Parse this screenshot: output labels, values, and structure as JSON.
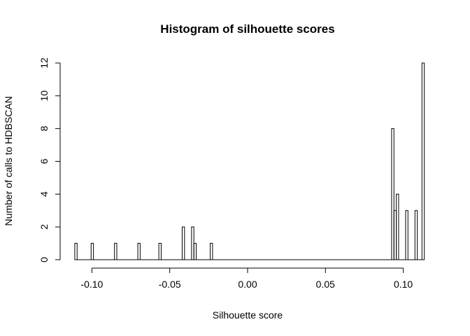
{
  "chart_data": {
    "type": "bar",
    "title": "Histogram of silhouette scores",
    "xlabel": "Silhouette score",
    "ylabel": "Number of calls to HDBSCAN",
    "xlim": [
      -0.115,
      0.115
    ],
    "ylim": [
      0,
      12
    ],
    "grid": false,
    "x_ticks": [
      -0.1,
      -0.05,
      0.0,
      0.05,
      0.1
    ],
    "x_tick_labels": [
      "-0.10",
      "-0.05",
      "0.00",
      "0.05",
      "0.10"
    ],
    "y_ticks": [
      0,
      2,
      4,
      6,
      8,
      10,
      12
    ],
    "y_tick_labels": [
      "0",
      "2",
      "4",
      "6",
      "8",
      "10",
      "12"
    ],
    "bin_width": 0.0015,
    "range": [
      -0.111,
      0.1135
    ],
    "bins": [
      {
        "start": -0.111,
        "value": 1
      },
      {
        "start": -0.1005,
        "value": 1
      },
      {
        "start": -0.0855,
        "value": 1
      },
      {
        "start": -0.0705,
        "value": 1
      },
      {
        "start": -0.057,
        "value": 1
      },
      {
        "start": -0.042,
        "value": 2
      },
      {
        "start": -0.036,
        "value": 2
      },
      {
        "start": -0.0345,
        "value": 1
      },
      {
        "start": -0.024,
        "value": 1
      },
      {
        "start": 0.0925,
        "value": 8
      },
      {
        "start": 0.094,
        "value": 3
      },
      {
        "start": 0.0955,
        "value": 4
      },
      {
        "start": 0.1015,
        "value": 3
      },
      {
        "start": 0.1075,
        "value": 3
      },
      {
        "start": 0.112,
        "value": 12
      }
    ]
  }
}
